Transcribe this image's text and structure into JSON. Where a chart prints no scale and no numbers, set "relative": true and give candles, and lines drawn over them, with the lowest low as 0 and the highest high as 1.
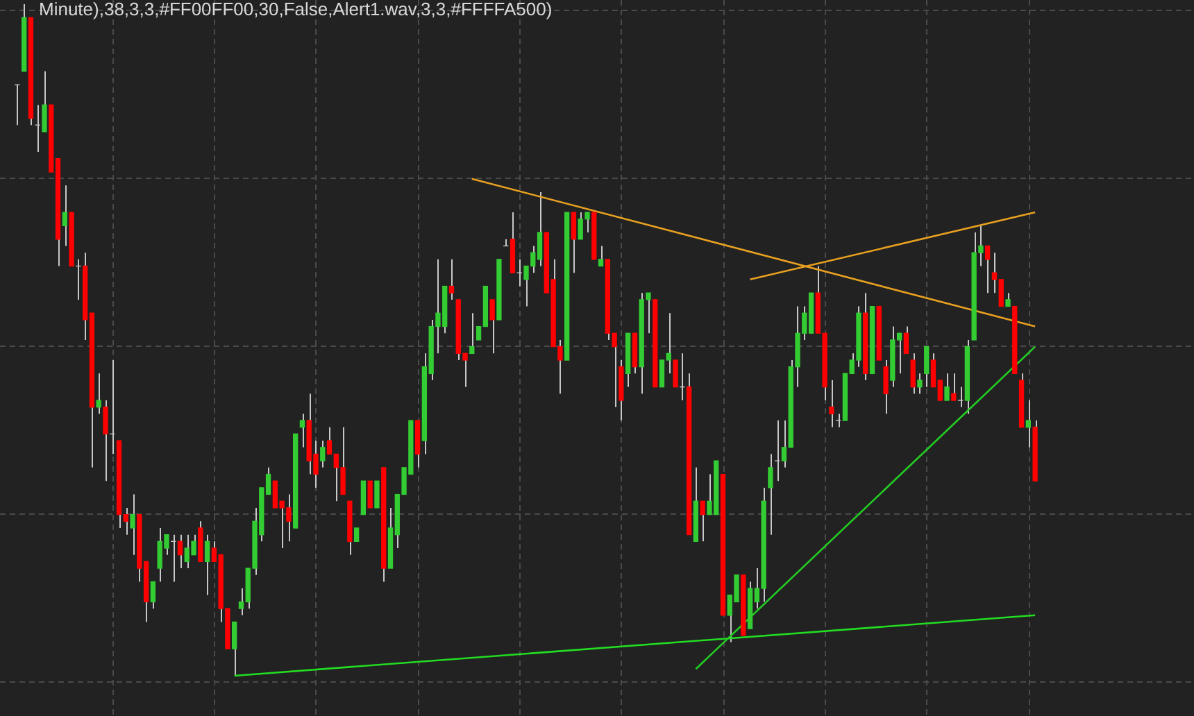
{
  "chart_data": {
    "type": "candlestick",
    "title": "Minute),38,3,3,#FF00FF00,30,False,Alert1.wav,3,3,#FFFFA500)",
    "relative": true,
    "grid": true,
    "legend": false,
    "categories": [
      null,
      null,
      null,
      null,
      null,
      null,
      null,
      null,
      null,
      null,
      null,
      null,
      null,
      null,
      null,
      null,
      null,
      null,
      null,
      null,
      null,
      null,
      null,
      null,
      null,
      null,
      null,
      null,
      null,
      null,
      null,
      null,
      null,
      null,
      null,
      null,
      null,
      null,
      null,
      null,
      null,
      null,
      null,
      null,
      null,
      null,
      null,
      null,
      null,
      null,
      null,
      null,
      null,
      null,
      null,
      null,
      null,
      null,
      null,
      null,
      null,
      null,
      null,
      null,
      null,
      null,
      null,
      null,
      null,
      null,
      null,
      null,
      null,
      null,
      null,
      null,
      null,
      null,
      null,
      null,
      null,
      null,
      null,
      null,
      null,
      null,
      null,
      null,
      null,
      null,
      null,
      null,
      null,
      null,
      null,
      null,
      null,
      null,
      null,
      null,
      null,
      null,
      null,
      null,
      null,
      null,
      null,
      null,
      null,
      null,
      null,
      null,
      null,
      null,
      null,
      null,
      null,
      null,
      null,
      null,
      null,
      null,
      null,
      null,
      null,
      null,
      null,
      null,
      null,
      null,
      null,
      null,
      null,
      null,
      null,
      null,
      null,
      null,
      null,
      null,
      null,
      null,
      null,
      null,
      null,
      null,
      null,
      null,
      null,
      null,
      null
    ],
    "ohlc": [
      [
        0.88,
        0.88,
        0.82,
        0.88
      ],
      [
        0.9,
        1,
        0.9,
        0.98
      ],
      [
        0.98,
        0.98,
        0.82,
        0.83
      ],
      [
        0.82,
        0.85,
        0.78,
        0.82
      ],
      [
        0.81,
        0.9,
        0.81,
        0.85
      ],
      [
        0.85,
        0.85,
        0.75,
        0.75
      ],
      [
        0.77,
        0.77,
        0.61,
        0.65
      ],
      [
        0.67,
        0.73,
        0.64,
        0.69
      ],
      [
        0.69,
        0.69,
        0.61,
        0.61
      ],
      [
        0.61,
        0.62,
        0.56,
        0.61
      ],
      [
        0.61,
        0.63,
        0.5,
        0.53
      ],
      [
        0.54,
        0.54,
        0.31,
        0.4
      ],
      [
        0.4,
        0.45,
        0.39,
        0.41
      ],
      [
        0.4,
        0.41,
        0.29,
        0.36
      ],
      [
        0.36,
        0.47,
        0.33,
        0.36
      ],
      [
        0.35,
        0.35,
        0.22,
        0.24
      ],
      [
        0.24,
        0.25,
        0.21,
        0.23
      ],
      [
        0.22,
        0.27,
        0.18,
        0.24
      ],
      [
        0.24,
        0.24,
        0.14,
        0.16
      ],
      [
        0.17,
        0.17,
        0.08,
        0.11
      ],
      [
        0.11,
        0.14,
        0.1,
        0.14
      ],
      [
        0.16,
        0.22,
        0.14,
        0.2
      ],
      [
        0.19,
        0.21,
        0.18,
        0.21
      ],
      [
        0.2,
        0.21,
        0.14,
        0.2
      ],
      [
        0.2,
        0.21,
        0.16,
        0.18
      ],
      [
        0.17,
        0.21,
        0.16,
        0.19
      ],
      [
        0.18,
        0.21,
        0.18,
        0.2
      ],
      [
        0.22,
        0.23,
        0.17,
        0.17
      ],
      [
        0.17,
        0.21,
        0.12,
        0.2
      ],
      [
        0.19,
        0.2,
        0.17,
        0.17
      ],
      [
        0.18,
        0.18,
        0.08,
        0.1
      ],
      [
        0.1,
        0.1,
        0.04,
        0.04
      ],
      [
        0.04,
        0.08,
        0,
        0.08
      ],
      [
        0.1,
        0.13,
        0.09,
        0.11
      ],
      [
        0.11,
        0.16,
        0.1,
        0.16
      ],
      [
        0.16,
        0.25,
        0.15,
        0.23
      ],
      [
        0.21,
        0.28,
        0.2,
        0.28
      ],
      [
        0.27,
        0.31,
        0.27,
        0.3
      ],
      [
        0.29,
        0.29,
        0.25,
        0.25
      ],
      [
        0.26,
        0.26,
        0.19,
        0.25
      ],
      [
        0.25,
        0.27,
        0.2,
        0.23
      ],
      [
        0.22,
        0.36,
        0.22,
        0.36
      ],
      [
        0.37,
        0.39,
        0.34,
        0.38
      ],
      [
        0.38,
        0.42,
        0.3,
        0.32
      ],
      [
        0.33,
        0.35,
        0.28,
        0.3
      ],
      [
        0.32,
        0.35,
        0.31,
        0.34
      ],
      [
        0.35,
        0.37,
        0.33,
        0.33
      ],
      [
        0.33,
        0.33,
        0.26,
        0.31
      ],
      [
        0.31,
        0.37,
        0.27,
        0.27
      ],
      [
        0.26,
        0.26,
        0.18,
        0.2
      ],
      [
        0.2,
        0.22,
        0.2,
        0.22
      ],
      [
        0.24,
        0.29,
        0.24,
        0.29
      ],
      [
        0.29,
        0.29,
        0.25,
        0.25
      ],
      [
        0.25,
        0.29,
        0.25,
        0.29
      ],
      [
        0.31,
        0.31,
        0.14,
        0.16
      ],
      [
        0.16,
        0.25,
        0.16,
        0.22
      ],
      [
        0.21,
        0.27,
        0.19,
        0.27
      ],
      [
        0.27,
        0.31,
        0.27,
        0.31
      ],
      [
        0.3,
        0.38,
        0.3,
        0.38
      ],
      [
        0.38,
        0.38,
        0.31,
        0.33
      ],
      [
        0.35,
        0.48,
        0.33,
        0.46
      ],
      [
        0.45,
        0.53,
        0.44,
        0.52
      ],
      [
        0.52,
        0.62,
        0.48,
        0.54
      ],
      [
        0.52,
        0.58,
        0.51,
        0.58
      ],
      [
        0.58,
        0.62,
        0.56,
        0.57
      ],
      [
        0.56,
        0.56,
        0.47,
        0.48
      ],
      [
        0.48,
        0.48,
        0.43,
        0.47
      ],
      [
        0.48,
        0.54,
        0.48,
        0.49
      ],
      [
        0.5,
        0.52,
        0.5,
        0.52
      ],
      [
        0.52,
        0.58,
        0.52,
        0.58
      ],
      [
        0.56,
        0.56,
        0.48,
        0.53
      ],
      [
        0.53,
        0.62,
        0.53,
        0.62
      ],
      [
        0.64,
        0.65,
        0.64,
        0.64
      ],
      [
        0.65,
        0.69,
        0.6,
        0.6
      ],
      [
        0.6,
        0.62,
        0.58,
        0.6
      ],
      [
        0.59,
        0.61,
        0.55,
        0.61
      ],
      [
        0.61,
        0.64,
        0.6,
        0.63
      ],
      [
        0.62,
        0.72,
        0.61,
        0.66
      ],
      [
        0.66,
        0.66,
        0.57,
        0.57
      ],
      [
        0.59,
        0.62,
        0.49,
        0.49
      ],
      [
        0.49,
        0.5,
        0.42,
        0.47
      ],
      [
        0.47,
        0.69,
        0.47,
        0.69
      ],
      [
        0.69,
        0.69,
        0.6,
        0.65
      ],
      [
        0.65,
        0.69,
        0.65,
        0.68
      ],
      [
        0.68,
        0.69,
        0.66,
        0.69
      ],
      [
        0.69,
        0.69,
        0.62,
        0.62
      ],
      [
        0.61,
        0.64,
        0.61,
        0.62
      ],
      [
        0.62,
        0.62,
        0.5,
        0.51
      ],
      [
        0.51,
        0.51,
        0.4,
        0.49
      ],
      [
        0.46,
        0.47,
        0.38,
        0.41
      ],
      [
        0.45,
        0.51,
        0.43,
        0.51
      ],
      [
        0.51,
        0.51,
        0.45,
        0.46
      ],
      [
        0.46,
        0.57,
        0.42,
        0.56
      ],
      [
        0.56,
        0.57,
        0.51,
        0.57
      ],
      [
        0.56,
        0.56,
        0.43,
        0.43
      ],
      [
        0.43,
        0.47,
        0.43,
        0.47
      ],
      [
        0.47,
        0.54,
        0.45,
        0.48
      ],
      [
        0.47,
        0.47,
        0.43,
        0.43
      ],
      [
        0.43,
        0.48,
        0.41,
        0.43
      ],
      [
        0.43,
        0.45,
        0.21,
        0.21
      ],
      [
        0.2,
        0.31,
        0.2,
        0.26
      ],
      [
        0.26,
        0.26,
        0.2,
        0.24
      ],
      [
        0.24,
        0.3,
        0.24,
        0.26
      ],
      [
        0.24,
        0.32,
        0.24,
        0.32
      ],
      [
        0.3,
        0.3,
        0.09,
        0.09
      ],
      [
        0.09,
        0.12,
        0.05,
        0.12
      ],
      [
        0.11,
        0.15,
        0.11,
        0.15
      ],
      [
        0.15,
        0.15,
        0.06,
        0.06
      ],
      [
        0.07,
        0.14,
        0.07,
        0.13
      ],
      [
        0.11,
        0.16,
        0.1,
        0.13
      ],
      [
        0.13,
        0.28,
        0.11,
        0.26
      ],
      [
        0.28,
        0.33,
        0.21,
        0.31
      ],
      [
        0.32,
        0.38,
        0.29,
        0.32
      ],
      [
        0.32,
        0.38,
        0.31,
        0.34
      ],
      [
        0.34,
        0.47,
        0.34,
        0.46
      ],
      [
        0.46,
        0.55,
        0.43,
        0.51
      ],
      [
        0.51,
        0.55,
        0.5,
        0.54
      ],
      [
        0.51,
        0.57,
        0.51,
        0.57
      ],
      [
        0.57,
        0.61,
        0.51,
        0.51
      ],
      [
        0.51,
        0.51,
        0.41,
        0.43
      ],
      [
        0.4,
        0.44,
        0.37,
        0.39
      ],
      [
        0.38,
        0.39,
        0.37,
        0.38
      ],
      [
        0.38,
        0.45,
        0.38,
        0.45
      ],
      [
        0.45,
        0.48,
        0.45,
        0.47
      ],
      [
        0.47,
        0.55,
        0.46,
        0.54
      ],
      [
        0.54,
        0.57,
        0.44,
        0.45
      ],
      [
        0.45,
        0.55,
        0.45,
        0.55
      ],
      [
        0.55,
        0.55,
        0.47,
        0.47
      ],
      [
        0.46,
        0.47,
        0.39,
        0.42
      ],
      [
        0.44,
        0.52,
        0.43,
        0.5
      ],
      [
        0.5,
        0.51,
        0.45,
        0.51
      ],
      [
        0.51,
        0.52,
        0.48,
        0.48
      ],
      [
        0.47,
        0.48,
        0.42,
        0.43
      ],
      [
        0.43,
        0.45,
        0.42,
        0.44
      ],
      [
        0.45,
        0.49,
        0.43,
        0.49
      ],
      [
        0.47,
        0.48,
        0.43,
        0.43
      ],
      [
        0.44,
        0.44,
        0.41,
        0.41
      ],
      [
        0.41,
        0.45,
        0.41,
        0.43
      ],
      [
        0.42,
        0.45,
        0.41,
        0.41
      ],
      [
        0.41,
        0.43,
        0.4,
        0.41
      ],
      [
        0.41,
        0.5,
        0.39,
        0.49
      ],
      [
        0.5,
        0.66,
        0.5,
        0.63
      ],
      [
        0.63,
        0.67,
        0.61,
        0.64
      ],
      [
        0.64,
        0.64,
        0.57,
        0.62
      ],
      [
        0.6,
        0.63,
        0.57,
        0.59
      ],
      [
        0.59,
        0.59,
        0.55,
        0.55
      ],
      [
        0.55,
        0.57,
        0.55,
        0.56
      ],
      [
        0.55,
        0.55,
        0.45,
        0.45
      ],
      [
        0.44,
        0.45,
        0.37,
        0.37
      ],
      [
        0.37,
        0.41,
        0.34,
        0.38
      ],
      [
        0.37,
        0.38,
        0.29,
        0.29
      ]
    ],
    "series": [
      {
        "type": "line",
        "color": "#e8a020",
        "values": [
          null,
          null,
          null,
          null,
          null,
          null,
          null,
          null,
          null,
          null,
          null,
          null,
          null,
          null,
          null,
          null,
          null,
          null,
          null,
          null,
          null,
          null,
          null,
          null,
          null,
          null,
          null,
          null,
          null,
          null,
          null,
          null,
          null,
          null,
          null,
          null,
          null,
          null,
          null,
          null,
          null,
          null,
          null,
          null,
          null,
          null,
          null,
          null,
          null,
          null,
          null,
          null,
          null,
          null,
          null,
          null,
          null,
          null,
          null,
          null,
          null,
          null,
          null,
          null,
          null,
          null,
          null,
          0.74,
          null,
          null,
          null,
          null,
          null,
          null,
          null,
          null,
          null,
          null,
          null,
          null,
          null,
          null,
          null,
          null,
          null,
          null,
          null,
          null,
          null,
          null,
          null,
          null,
          null,
          null,
          null,
          null,
          null,
          null,
          null,
          null,
          null,
          null,
          null,
          null,
          null,
          null,
          null,
          null,
          null,
          null,
          null,
          null,
          null,
          null,
          null,
          null,
          null,
          null,
          null,
          null,
          null,
          null,
          null,
          null,
          null,
          null,
          null,
          null,
          null,
          null,
          null,
          null,
          null,
          null,
          null,
          null,
          null,
          null,
          null,
          null,
          null,
          null,
          null,
          null,
          null,
          null,
          null,
          null,
          null,
          null,
          0.52
        ]
      },
      {
        "type": "line",
        "color": "#e8a020",
        "values": [
          null,
          null,
          null,
          null,
          null,
          null,
          null,
          null,
          null,
          null,
          null,
          null,
          null,
          null,
          null,
          null,
          null,
          null,
          null,
          null,
          null,
          null,
          null,
          null,
          null,
          null,
          null,
          null,
          null,
          null,
          null,
          null,
          null,
          null,
          null,
          null,
          null,
          null,
          null,
          null,
          null,
          null,
          null,
          null,
          null,
          null,
          null,
          null,
          null,
          null,
          null,
          null,
          null,
          null,
          null,
          null,
          null,
          null,
          null,
          null,
          null,
          null,
          null,
          null,
          null,
          null,
          null,
          null,
          null,
          null,
          null,
          null,
          null,
          null,
          null,
          null,
          null,
          null,
          null,
          null,
          null,
          null,
          null,
          null,
          null,
          null,
          null,
          null,
          null,
          null,
          null,
          null,
          null,
          null,
          null,
          null,
          null,
          null,
          null,
          null,
          null,
          null,
          null,
          null,
          null,
          null,
          null,
          null,
          0.59,
          null,
          null,
          null,
          null,
          null,
          null,
          null,
          null,
          null,
          null,
          null,
          null,
          null,
          null,
          null,
          null,
          null,
          null,
          null,
          null,
          null,
          null,
          null,
          null,
          null,
          null,
          null,
          null,
          null,
          null,
          null,
          null,
          null,
          null,
          null,
          null,
          null,
          null,
          null,
          null,
          null,
          0.69
        ]
      },
      {
        "type": "line",
        "color": "#22cc22",
        "values": [
          null,
          null,
          null,
          null,
          null,
          null,
          null,
          null,
          null,
          null,
          null,
          null,
          null,
          null,
          null,
          null,
          null,
          null,
          null,
          null,
          null,
          null,
          null,
          null,
          null,
          null,
          null,
          null,
          null,
          null,
          null,
          null,
          null,
          null,
          null,
          null,
          null,
          null,
          null,
          null,
          null,
          null,
          null,
          null,
          null,
          null,
          null,
          null,
          null,
          null,
          null,
          null,
          null,
          null,
          null,
          null,
          null,
          null,
          null,
          null,
          null,
          null,
          null,
          null,
          null,
          null,
          null,
          null,
          null,
          null,
          null,
          null,
          null,
          null,
          null,
          null,
          null,
          null,
          null,
          null,
          null,
          null,
          null,
          null,
          null,
          null,
          null,
          null,
          null,
          null,
          null,
          null,
          null,
          null,
          null,
          null,
          null,
          null,
          null,
          null,
          0.01,
          null,
          null,
          null,
          null,
          null,
          null,
          null,
          null,
          null,
          null,
          null,
          null,
          null,
          null,
          null,
          null,
          null,
          null,
          null,
          null,
          null,
          null,
          null,
          null,
          null,
          null,
          null,
          null,
          null,
          null,
          null,
          null,
          null,
          null,
          null,
          null,
          null,
          null,
          null,
          null,
          null,
          null,
          null,
          null,
          null,
          null,
          null,
          null,
          null,
          0.49
        ]
      },
      {
        "type": "line",
        "color": "#22dd22",
        "values": [
          null,
          null,
          null,
          null,
          null,
          null,
          null,
          null,
          null,
          null,
          null,
          null,
          null,
          null,
          null,
          null,
          null,
          null,
          null,
          null,
          null,
          null,
          null,
          null,
          null,
          null,
          null,
          null,
          null,
          null,
          null,
          null,
          0,
          null,
          null,
          null,
          null,
          null,
          null,
          null,
          null,
          null,
          null,
          null,
          null,
          null,
          null,
          null,
          null,
          null,
          null,
          null,
          null,
          null,
          null,
          null,
          null,
          null,
          null,
          null,
          null,
          null,
          null,
          null,
          null,
          null,
          null,
          null,
          null,
          null,
          null,
          null,
          null,
          null,
          null,
          null,
          null,
          null,
          null,
          null,
          null,
          null,
          null,
          null,
          null,
          null,
          null,
          null,
          null,
          null,
          null,
          null,
          null,
          null,
          null,
          null,
          null,
          null,
          null,
          null,
          null,
          null,
          null,
          null,
          null,
          null,
          null,
          null,
          null,
          null,
          null,
          null,
          null,
          null,
          null,
          null,
          null,
          null,
          null,
          null,
          null,
          null,
          null,
          null,
          null,
          null,
          null,
          null,
          null,
          null,
          null,
          null,
          null,
          null,
          null,
          null,
          null,
          null,
          null,
          null,
          null,
          null,
          null,
          null,
          null,
          null,
          null,
          null,
          null,
          null,
          0.09
        ]
      }
    ]
  }
}
